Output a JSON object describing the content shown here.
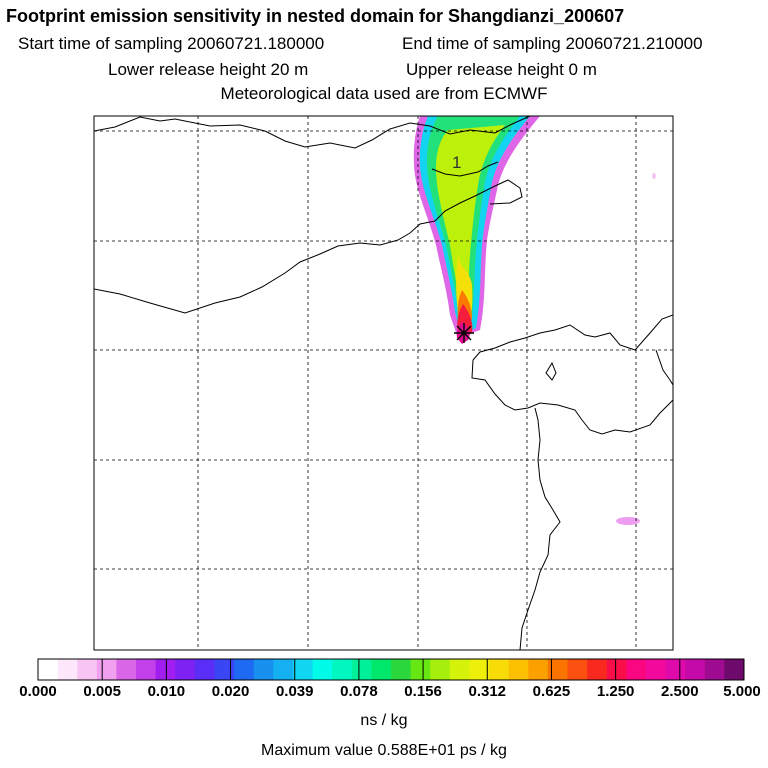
{
  "header": {
    "title": "Footprint emission sensitivity in nested domain for Shangdianzi_200607",
    "start_label": "Start time of sampling 20060721.180000",
    "end_label": "End time of sampling 20060721.210000",
    "lower_label": "Lower release height   20 m",
    "upper_label": "Upper release height    0 m",
    "met_label": "Meteorological data used are from ECMWF"
  },
  "map": {
    "contour_label": "1",
    "station_marker": "receptor-star"
  },
  "colorbar": {
    "ticks": [
      "0.000",
      "0.005",
      "0.010",
      "0.020",
      "0.039",
      "0.078",
      "0.156",
      "0.312",
      "0.625",
      "1.250",
      "2.500",
      "5.000"
    ],
    "colors": [
      "#ffffff",
      "#fde8fb",
      "#f8c4f4",
      "#f0a0ee",
      "#d966e6",
      "#c240ea",
      "#a21ef0",
      "#7d22f2",
      "#5a2ef6",
      "#3a46f4",
      "#1f6af2",
      "#1890f0",
      "#14b0f2",
      "#10d6f2",
      "#00fbe8",
      "#00f7c0",
      "#00f09a",
      "#00e86c",
      "#2ad83e",
      "#66e612",
      "#a6ee0c",
      "#d4f20a",
      "#eef00c",
      "#f8dc08",
      "#fcc000",
      "#fca000",
      "#fc7400",
      "#fc5010",
      "#f82a20",
      "#fa0e4a",
      "#fa0680",
      "#f20a9e",
      "#de0aac",
      "#c40aa8",
      "#9e0a90",
      "#6e0a6c"
    ],
    "units": "ns / kg",
    "max_value_label": "Maximum value  0.588E+01 ps / kg"
  }
}
